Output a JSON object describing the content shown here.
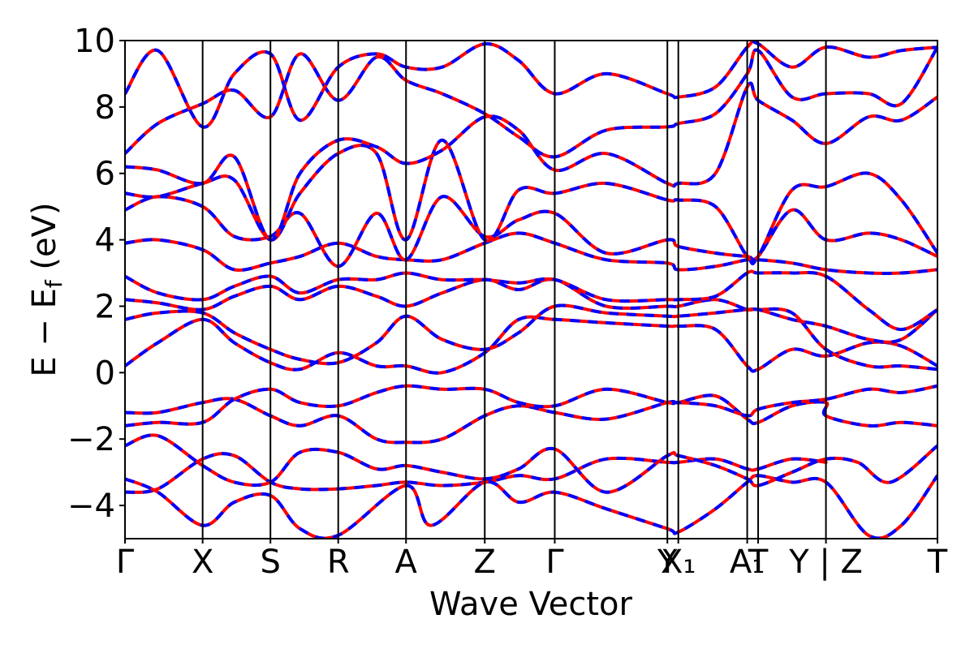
{
  "chart_data": {
    "type": "line",
    "title": "",
    "xlabel": "Wave Vector",
    "ylabel": "E − E",
    "ylabel_sub": "f",
    "ylabel_unit": " (eV)",
    "ylim": [
      -5,
      10
    ],
    "yticks": [
      -4,
      -2,
      0,
      2,
      4,
      6,
      8,
      10
    ],
    "xlim": [
      0,
      7.43
    ],
    "kpoints": [
      {
        "label": "Γ",
        "x": 0.0
      },
      {
        "label": "X",
        "x": 0.71
      },
      {
        "label": "S",
        "x": 1.33
      },
      {
        "label": "R",
        "x": 1.95
      },
      {
        "label": "A",
        "x": 2.57
      },
      {
        "label": "Z",
        "x": 3.29
      },
      {
        "label": "Γ",
        "x": 3.93
      },
      {
        "label": "Y",
        "x": 4.96
      },
      {
        "label": "X₁",
        "x": 5.06
      },
      {
        "label": "A₁",
        "x": 5.69
      },
      {
        "label": "T",
        "x": 5.79
      },
      {
        "label": "Y | Z",
        "x": 6.41
      },
      {
        "label": "T",
        "x": 7.43
      }
    ],
    "grid": false,
    "series": [
      {
        "color": "#ff0000",
        "style": "solid"
      },
      {
        "color": "#0000ff",
        "style": "dashed"
      }
    ],
    "bands": [
      [
        [
          0.0,
          -3.6
        ],
        [
          0.3,
          -3.5
        ],
        [
          0.71,
          -2.6
        ],
        [
          1.0,
          -2.5
        ],
        [
          1.33,
          -3.3
        ],
        [
          1.6,
          -3.5
        ],
        [
          1.95,
          -3.5
        ],
        [
          2.3,
          -3.4
        ],
        [
          2.57,
          -3.3
        ],
        [
          2.9,
          -3.4
        ],
        [
          3.29,
          -3.3
        ],
        [
          3.6,
          -3.1
        ],
        [
          3.93,
          -3.2
        ],
        [
          4.4,
          -2.6
        ],
        [
          4.96,
          -2.7
        ],
        [
          5.06,
          -2.7
        ],
        [
          5.4,
          -2.6
        ],
        [
          5.69,
          -2.9
        ],
        [
          5.79,
          -2.9
        ],
        [
          6.1,
          -2.6
        ],
        [
          6.41,
          -2.7
        ]
      ],
      [
        [
          0.0,
          -3.2
        ],
        [
          0.3,
          -3.6
        ],
        [
          0.71,
          -4.6
        ],
        [
          1.0,
          -3.9
        ],
        [
          1.33,
          -3.7
        ],
        [
          1.6,
          -4.7
        ],
        [
          1.95,
          -4.9
        ],
        [
          2.57,
          -3.4
        ],
        [
          2.8,
          -4.6
        ],
        [
          3.29,
          -3.3
        ],
        [
          3.6,
          -3.9
        ],
        [
          3.93,
          -3.6
        ],
        [
          4.4,
          -4.1
        ],
        [
          4.96,
          -4.7
        ],
        [
          5.06,
          -4.8
        ],
        [
          5.4,
          -4.1
        ],
        [
          5.69,
          -3.3
        ],
        [
          5.79,
          -3.1
        ],
        [
          6.1,
          -3.3
        ],
        [
          6.41,
          -3.3
        ],
        [
          6.8,
          -4.9
        ],
        [
          7.1,
          -4.6
        ],
        [
          7.43,
          -3.1
        ]
      ],
      [
        [
          0.0,
          -2.2
        ],
        [
          0.3,
          -1.9
        ],
        [
          0.71,
          -2.8
        ],
        [
          1.0,
          -3.3
        ],
        [
          1.33,
          -3.3
        ],
        [
          1.6,
          -2.4
        ],
        [
          1.95,
          -2.4
        ],
        [
          2.3,
          -2.9
        ],
        [
          2.57,
          -2.8
        ],
        [
          2.9,
          -3.0
        ],
        [
          3.29,
          -3.2
        ],
        [
          3.6,
          -2.9
        ],
        [
          3.93,
          -2.3
        ],
        [
          4.4,
          -3.6
        ],
        [
          4.96,
          -2.5
        ],
        [
          5.06,
          -2.5
        ],
        [
          5.4,
          -2.8
        ],
        [
          5.69,
          -3.2
        ],
        [
          5.79,
          -3.4
        ],
        [
          6.1,
          -3.0
        ],
        [
          6.41,
          -2.6
        ],
        [
          6.7,
          -2.7
        ],
        [
          7.0,
          -3.3
        ],
        [
          7.43,
          -2.2
        ]
      ],
      [
        [
          0.0,
          -1.2
        ],
        [
          0.3,
          -1.2
        ],
        [
          0.71,
          -0.9
        ],
        [
          1.0,
          -0.8
        ],
        [
          1.33,
          -1.3
        ],
        [
          1.6,
          -1.6
        ],
        [
          1.95,
          -1.3
        ],
        [
          2.3,
          -2.0
        ],
        [
          2.57,
          -2.1
        ],
        [
          2.9,
          -2.0
        ],
        [
          3.29,
          -1.3
        ],
        [
          3.6,
          -1.0
        ],
        [
          3.93,
          -1.2
        ],
        [
          4.4,
          -1.4
        ],
        [
          4.96,
          -0.9
        ],
        [
          5.06,
          -0.9
        ],
        [
          5.4,
          -0.7
        ],
        [
          5.69,
          -1.4
        ],
        [
          5.79,
          -1.5
        ],
        [
          6.1,
          -1.0
        ],
        [
          6.41,
          -0.9
        ],
        [
          6.41,
          -1.3
        ],
        [
          6.8,
          -1.6
        ],
        [
          7.1,
          -1.5
        ],
        [
          7.43,
          -1.6
        ]
      ],
      [
        [
          0.0,
          -1.6
        ],
        [
          0.3,
          -1.5
        ],
        [
          0.71,
          -1.5
        ],
        [
          1.0,
          -0.8
        ],
        [
          1.33,
          -0.5
        ],
        [
          1.6,
          -0.9
        ],
        [
          1.95,
          -1.0
        ],
        [
          2.3,
          -0.6
        ],
        [
          2.57,
          -0.4
        ],
        [
          2.9,
          -0.5
        ],
        [
          3.29,
          -0.5
        ],
        [
          3.6,
          -0.9
        ],
        [
          3.93,
          -1.0
        ],
        [
          4.4,
          -0.5
        ],
        [
          4.96,
          -0.9
        ],
        [
          5.06,
          -0.9
        ],
        [
          5.4,
          -1.0
        ],
        [
          5.69,
          -1.3
        ],
        [
          5.79,
          -1.1
        ],
        [
          6.1,
          -0.9
        ],
        [
          6.41,
          -0.8
        ],
        [
          6.8,
          -0.5
        ],
        [
          7.1,
          -0.6
        ],
        [
          7.43,
          -0.4
        ]
      ],
      [
        [
          0.0,
          0.2
        ],
        [
          0.3,
          0.9
        ],
        [
          0.71,
          1.6
        ],
        [
          1.0,
          0.9
        ],
        [
          1.33,
          0.3
        ],
        [
          1.6,
          0.1
        ],
        [
          1.95,
          0.6
        ],
        [
          2.3,
          0.2
        ],
        [
          2.57,
          0.2
        ],
        [
          2.9,
          0.0
        ],
        [
          3.29,
          0.6
        ],
        [
          3.6,
          1.6
        ],
        [
          3.93,
          1.6
        ],
        [
          4.4,
          1.5
        ],
        [
          4.96,
          1.4
        ],
        [
          5.06,
          1.4
        ],
        [
          5.4,
          1.3
        ],
        [
          5.69,
          0.2
        ],
        [
          5.79,
          0.1
        ],
        [
          6.1,
          0.7
        ],
        [
          6.41,
          0.5
        ],
        [
          6.8,
          0.9
        ],
        [
          7.1,
          0.8
        ],
        [
          7.43,
          0.2
        ]
      ],
      [
        [
          0.0,
          1.6
        ],
        [
          0.3,
          1.8
        ],
        [
          0.71,
          1.8
        ],
        [
          1.0,
          1.2
        ],
        [
          1.33,
          0.7
        ],
        [
          1.6,
          0.4
        ],
        [
          1.95,
          0.3
        ],
        [
          2.3,
          0.9
        ],
        [
          2.57,
          1.7
        ],
        [
          2.9,
          1.0
        ],
        [
          3.29,
          0.7
        ],
        [
          3.6,
          1.2
        ],
        [
          3.93,
          2.0
        ],
        [
          4.4,
          1.8
        ],
        [
          4.96,
          1.7
        ],
        [
          5.06,
          1.7
        ],
        [
          5.4,
          1.8
        ],
        [
          5.69,
          1.9
        ],
        [
          5.79,
          1.9
        ],
        [
          6.1,
          1.8
        ],
        [
          6.41,
          0.7
        ],
        [
          6.8,
          0.2
        ],
        [
          7.1,
          0.2
        ],
        [
          7.43,
          0.1
        ]
      ],
      [
        [
          0.0,
          2.2
        ],
        [
          0.3,
          2.1
        ],
        [
          0.71,
          1.9
        ],
        [
          1.0,
          2.3
        ],
        [
          1.33,
          2.6
        ],
        [
          1.6,
          2.2
        ],
        [
          1.95,
          2.6
        ],
        [
          2.3,
          2.3
        ],
        [
          2.57,
          2.0
        ],
        [
          2.9,
          2.4
        ],
        [
          3.29,
          2.8
        ],
        [
          3.6,
          2.5
        ],
        [
          3.93,
          2.8
        ],
        [
          4.4,
          2.0
        ],
        [
          4.96,
          2.0
        ],
        [
          5.06,
          2.0
        ],
        [
          5.4,
          2.2
        ],
        [
          5.69,
          1.9
        ],
        [
          5.79,
          1.9
        ],
        [
          6.1,
          1.6
        ],
        [
          6.41,
          1.4
        ],
        [
          6.8,
          1.0
        ],
        [
          7.1,
          1.0
        ],
        [
          7.43,
          1.9
        ]
      ],
      [
        [
          0.0,
          2.9
        ],
        [
          0.3,
          2.4
        ],
        [
          0.71,
          2.2
        ],
        [
          1.0,
          2.6
        ],
        [
          1.33,
          2.9
        ],
        [
          1.6,
          2.4
        ],
        [
          1.95,
          2.8
        ],
        [
          2.3,
          2.8
        ],
        [
          2.57,
          3.0
        ],
        [
          2.9,
          2.8
        ],
        [
          3.29,
          2.8
        ],
        [
          3.6,
          2.7
        ],
        [
          3.93,
          2.8
        ],
        [
          4.4,
          2.2
        ],
        [
          4.96,
          2.2
        ],
        [
          5.06,
          2.2
        ],
        [
          5.4,
          2.3
        ],
        [
          5.69,
          3.0
        ],
        [
          5.79,
          3.0
        ],
        [
          6.1,
          3.0
        ],
        [
          6.41,
          2.9
        ],
        [
          6.8,
          1.9
        ],
        [
          7.1,
          1.3
        ],
        [
          7.43,
          1.9
        ]
      ],
      [
        [
          0.0,
          3.9
        ],
        [
          0.3,
          4.0
        ],
        [
          0.71,
          3.7
        ],
        [
          1.0,
          3.1
        ],
        [
          1.33,
          3.3
        ],
        [
          1.6,
          3.5
        ],
        [
          1.95,
          3.9
        ],
        [
          2.3,
          3.5
        ],
        [
          2.57,
          3.4
        ],
        [
          2.9,
          3.4
        ],
        [
          3.29,
          3.9
        ],
        [
          3.6,
          4.2
        ],
        [
          3.93,
          3.9
        ],
        [
          4.4,
          3.4
        ],
        [
          4.96,
          3.3
        ],
        [
          5.06,
          3.1
        ],
        [
          5.4,
          3.2
        ],
        [
          5.69,
          3.4
        ],
        [
          5.79,
          3.4
        ],
        [
          6.1,
          3.3
        ],
        [
          6.41,
          3.1
        ],
        [
          6.8,
          3.0
        ],
        [
          7.1,
          3.0
        ],
        [
          7.43,
          3.1
        ]
      ],
      [
        [
          0.0,
          4.9
        ],
        [
          0.3,
          5.3
        ],
        [
          0.71,
          5.0
        ],
        [
          1.0,
          4.1
        ],
        [
          1.33,
          4.1
        ],
        [
          1.6,
          4.8
        ],
        [
          1.95,
          3.2
        ],
        [
          2.3,
          4.8
        ],
        [
          2.57,
          3.4
        ],
        [
          2.9,
          5.3
        ],
        [
          3.29,
          4.1
        ],
        [
          3.6,
          4.6
        ],
        [
          3.93,
          4.8
        ],
        [
          4.4,
          3.6
        ],
        [
          4.96,
          4.0
        ],
        [
          5.06,
          3.8
        ],
        [
          5.4,
          3.6
        ],
        [
          5.69,
          3.5
        ],
        [
          5.79,
          3.5
        ],
        [
          6.1,
          4.9
        ],
        [
          6.41,
          4.0
        ],
        [
          6.8,
          4.2
        ],
        [
          7.1,
          4.0
        ],
        [
          7.43,
          3.5
        ]
      ],
      [
        [
          0.0,
          5.4
        ],
        [
          0.3,
          5.3
        ],
        [
          0.71,
          5.7
        ],
        [
          1.0,
          5.8
        ],
        [
          1.33,
          4.0
        ],
        [
          1.6,
          5.4
        ],
        [
          1.95,
          6.6
        ],
        [
          2.3,
          6.6
        ],
        [
          2.57,
          4.0
        ],
        [
          2.9,
          7.0
        ],
        [
          3.29,
          4.0
        ],
        [
          3.6,
          5.5
        ],
        [
          3.93,
          5.4
        ],
        [
          4.4,
          5.7
        ],
        [
          4.96,
          5.2
        ],
        [
          5.06,
          5.2
        ],
        [
          5.4,
          5.0
        ],
        [
          5.69,
          3.5
        ],
        [
          5.79,
          3.5
        ],
        [
          6.1,
          5.5
        ],
        [
          6.41,
          5.6
        ],
        [
          6.8,
          6.0
        ],
        [
          7.1,
          5.2
        ],
        [
          7.43,
          3.6
        ]
      ],
      [
        [
          0.0,
          6.2
        ],
        [
          0.3,
          6.1
        ],
        [
          0.71,
          5.7
        ],
        [
          1.0,
          6.5
        ],
        [
          1.33,
          4.0
        ],
        [
          1.6,
          6.0
        ],
        [
          1.95,
          7.0
        ],
        [
          2.3,
          6.8
        ],
        [
          2.57,
          6.3
        ],
        [
          2.9,
          6.7
        ],
        [
          3.29,
          7.7
        ],
        [
          3.6,
          7.3
        ],
        [
          3.93,
          6.1
        ],
        [
          4.4,
          6.6
        ],
        [
          4.96,
          5.7
        ],
        [
          5.06,
          5.7
        ],
        [
          5.4,
          6.0
        ],
        [
          5.69,
          8.6
        ],
        [
          5.79,
          8.2
        ],
        [
          6.1,
          7.6
        ],
        [
          6.41,
          6.9
        ],
        [
          6.8,
          7.7
        ],
        [
          7.1,
          7.6
        ],
        [
          7.43,
          8.3
        ]
      ],
      [
        [
          0.0,
          6.6
        ],
        [
          0.3,
          7.5
        ],
        [
          0.71,
          8.1
        ],
        [
          1.0,
          8.5
        ],
        [
          1.33,
          7.7
        ],
        [
          1.6,
          9.6
        ],
        [
          1.95,
          8.2
        ],
        [
          2.3,
          9.5
        ],
        [
          2.57,
          8.8
        ],
        [
          2.9,
          8.4
        ],
        [
          3.29,
          7.8
        ],
        [
          3.6,
          7.1
        ],
        [
          3.93,
          6.5
        ],
        [
          4.4,
          7.3
        ],
        [
          4.96,
          7.4
        ],
        [
          5.06,
          7.5
        ],
        [
          5.4,
          7.8
        ],
        [
          5.69,
          9.0
        ],
        [
          5.79,
          9.7
        ],
        [
          6.1,
          8.3
        ],
        [
          6.41,
          8.4
        ],
        [
          6.8,
          8.4
        ],
        [
          7.1,
          8.1
        ],
        [
          7.43,
          9.8
        ]
      ],
      [
        [
          0.0,
          8.4
        ],
        [
          0.3,
          9.7
        ],
        [
          0.71,
          7.4
        ],
        [
          1.0,
          9.0
        ],
        [
          1.33,
          9.6
        ],
        [
          1.6,
          7.6
        ],
        [
          1.95,
          9.2
        ],
        [
          2.3,
          9.6
        ],
        [
          2.57,
          9.2
        ],
        [
          2.9,
          9.2
        ],
        [
          3.29,
          9.9
        ],
        [
          3.6,
          9.4
        ],
        [
          3.93,
          8.4
        ],
        [
          4.4,
          9.0
        ],
        [
          4.96,
          8.4
        ],
        [
          5.06,
          8.3
        ],
        [
          5.4,
          8.6
        ],
        [
          5.69,
          9.8
        ],
        [
          5.79,
          9.9
        ],
        [
          6.1,
          9.2
        ],
        [
          6.41,
          9.8
        ],
        [
          6.8,
          9.5
        ],
        [
          7.1,
          9.7
        ],
        [
          7.43,
          9.8
        ]
      ]
    ]
  }
}
